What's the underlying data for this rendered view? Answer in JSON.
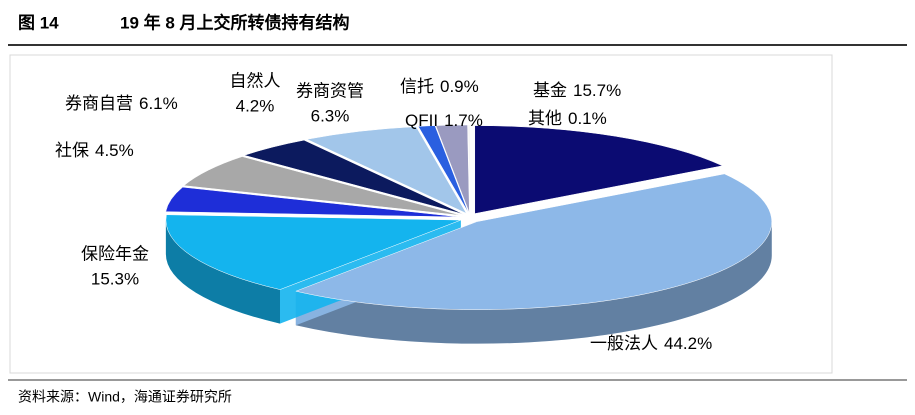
{
  "chart_data": {
    "type": "pie",
    "figure_label": "图 14",
    "title": "19 年 8 月上交所转债持有结构",
    "categories": [
      "基金",
      "一般法人",
      "保险年金",
      "社保",
      "券商自营",
      "自然人",
      "券商资管",
      "信托",
      "QFII",
      "其他"
    ],
    "values": [
      15.7,
      44.2,
      15.3,
      4.5,
      6.1,
      4.2,
      6.3,
      0.9,
      1.7,
      0.1
    ],
    "value_labels": [
      "15.7%",
      "44.2%",
      "15.3%",
      "4.5%",
      "6.1%",
      "4.2%",
      "6.3%",
      "0.9%",
      "1.7%",
      "0.1%"
    ],
    "colors": [
      "#0b0b72",
      "#8db8e8",
      "#14b4ee",
      "#1e2ed8",
      "#a8a8a8",
      "#0c1a5e",
      "#a2c6ea",
      "#2a5fe0",
      "#9a9ac0",
      "#f2f2f2"
    ],
    "source": "资料来源：Wind，海通证券研究所"
  }
}
